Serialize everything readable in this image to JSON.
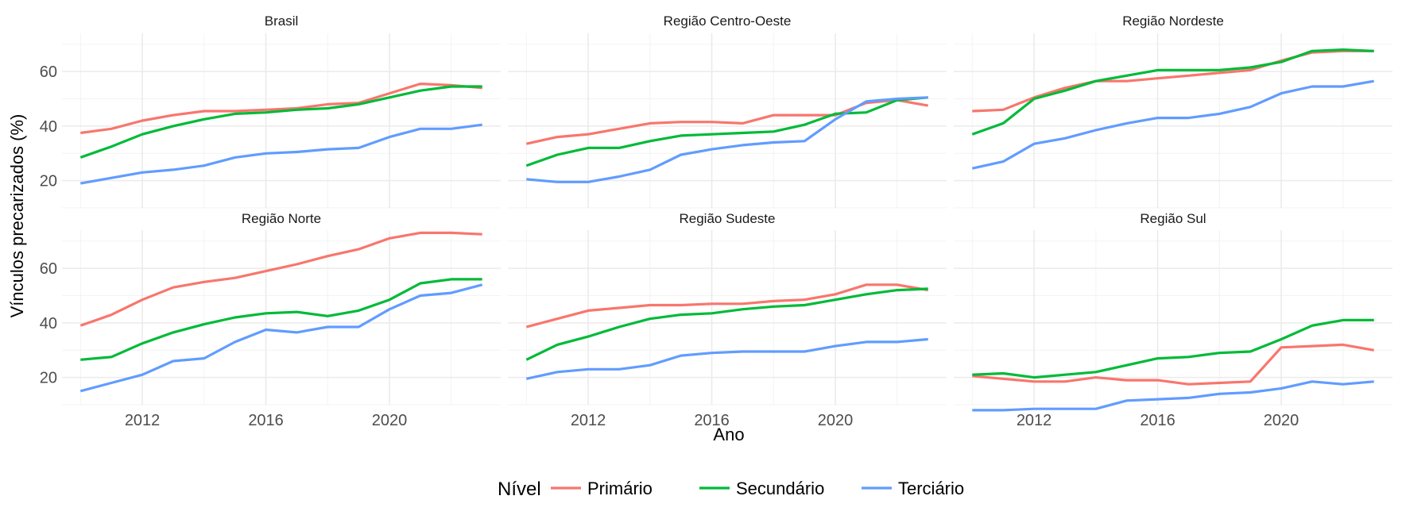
{
  "chart_data": {
    "type": "line",
    "xlabel": "Ano",
    "ylabel": "Vínculos precarizados (%)",
    "x": [
      2010,
      2011,
      2012,
      2013,
      2014,
      2015,
      2016,
      2017,
      2018,
      2019,
      2020,
      2021,
      2022,
      2023
    ],
    "xlim": [
      2009.4,
      2023.6
    ],
    "ylim": [
      10,
      74
    ],
    "x_ticks": [
      2012,
      2016,
      2020
    ],
    "y_ticks": [
      20,
      40,
      60
    ],
    "grid": true,
    "legend": {
      "title": "Nível",
      "position": "bottom",
      "entries": [
        {
          "name": "Primário",
          "color": "#F8766D"
        },
        {
          "name": "Secundário",
          "color": "#00BA38"
        },
        {
          "name": "Terciário",
          "color": "#619CFF"
        }
      ]
    },
    "panels": [
      {
        "title": "Brasil",
        "series": [
          {
            "name": "Primário",
            "values": [
              37.5,
              39,
              42,
              44,
              45.5,
              45.5,
              46,
              46.5,
              48,
              48.5,
              52,
              55.5,
              55,
              54
            ]
          },
          {
            "name": "Secundário",
            "values": [
              28.5,
              32.5,
              37,
              40,
              42.5,
              44.5,
              45,
              46,
              46.5,
              48,
              50.5,
              53,
              54.5,
              54.5
            ]
          },
          {
            "name": "Terciário",
            "values": [
              19,
              21,
              23,
              24,
              25.5,
              28.5,
              30,
              30.5,
              31.5,
              32,
              36,
              39,
              39,
              40.5
            ]
          }
        ]
      },
      {
        "title": "Região Centro-Oeste",
        "series": [
          {
            "name": "Primário",
            "values": [
              33.5,
              36,
              37,
              39,
              41,
              41.5,
              41.5,
              41,
              44,
              44,
              44,
              48.5,
              49.5,
              47.5
            ]
          },
          {
            "name": "Secundário",
            "values": [
              25.5,
              29.5,
              32,
              32,
              34.5,
              36.5,
              37,
              37.5,
              38,
              40.5,
              44.5,
              45,
              49.5,
              50.5
            ]
          },
          {
            "name": "Terciário",
            "values": [
              20.5,
              19.5,
              19.5,
              21.5,
              24,
              29.5,
              31.5,
              33,
              34,
              34.5,
              42.5,
              49,
              50,
              50.5
            ]
          }
        ]
      },
      {
        "title": "Região Nordeste",
        "series": [
          {
            "name": "Primário",
            "values": [
              45.5,
              46,
              50.5,
              54,
              56.5,
              56.5,
              57.5,
              58.5,
              59.5,
              60.5,
              64,
              67,
              67.5,
              67.5
            ]
          },
          {
            "name": "Secundário",
            "values": [
              37,
              41,
              50,
              53,
              56.5,
              58.5,
              60.5,
              60.5,
              60.5,
              61.5,
              63.5,
              67.5,
              68,
              67.5
            ]
          },
          {
            "name": "Terciário",
            "values": [
              24.5,
              27,
              33.5,
              35.5,
              38.5,
              41,
              43,
              43,
              44.5,
              47,
              52,
              54.5,
              54.5,
              56.5
            ]
          }
        ]
      },
      {
        "title": "Região Norte",
        "series": [
          {
            "name": "Primário",
            "values": [
              39,
              43,
              48.5,
              53,
              55,
              56.5,
              59,
              61.5,
              64.5,
              67,
              71,
              73,
              73,
              72.5
            ]
          },
          {
            "name": "Secundário",
            "values": [
              26.5,
              27.5,
              32.5,
              36.5,
              39.5,
              42,
              43.5,
              44,
              42.5,
              44.5,
              48.5,
              54.5,
              56,
              56
            ]
          },
          {
            "name": "Terciário",
            "values": [
              15,
              18,
              21,
              26,
              27,
              33,
              37.5,
              36.5,
              38.5,
              38.5,
              45,
              50,
              51,
              54
            ]
          }
        ]
      },
      {
        "title": "Região Sudeste",
        "series": [
          {
            "name": "Primário",
            "values": [
              38.5,
              41.5,
              44.5,
              45.5,
              46.5,
              46.5,
              47,
              47,
              48,
              48.5,
              50.5,
              54,
              54,
              52
            ]
          },
          {
            "name": "Secundário",
            "values": [
              26.5,
              32,
              35,
              38.5,
              41.5,
              43,
              43.5,
              45,
              46,
              46.5,
              48.5,
              50.5,
              52,
              52.5
            ]
          },
          {
            "name": "Terciário",
            "values": [
              19.5,
              22,
              23,
              23,
              24.5,
              28,
              29,
              29.5,
              29.5,
              29.5,
              31.5,
              33,
              33,
              34
            ]
          }
        ]
      },
      {
        "title": "Região Sul",
        "series": [
          {
            "name": "Primário",
            "values": [
              20.5,
              19.5,
              18.5,
              18.5,
              20,
              19,
              19,
              17.5,
              18,
              18.5,
              31,
              31.5,
              32,
              30
            ]
          },
          {
            "name": "Secundário",
            "values": [
              21,
              21.5,
              20,
              21,
              22,
              24.5,
              27,
              27.5,
              29,
              29.5,
              34,
              39,
              41,
              41
            ]
          },
          {
            "name": "Terciário",
            "values": [
              8,
              8,
              8.5,
              8.5,
              8.5,
              11.5,
              12,
              12.5,
              14,
              14.5,
              16,
              18.5,
              17.5,
              18.5
            ]
          }
        ]
      }
    ]
  }
}
